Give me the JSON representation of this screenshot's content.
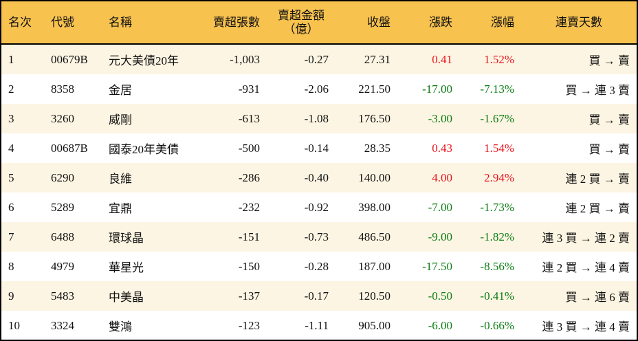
{
  "headers": [
    "名次",
    "代號",
    "名稱",
    "賣超張數",
    "賣超金額",
    "（億）",
    "收盤",
    "漲跌",
    "漲幅",
    "連賣天數"
  ],
  "colors": {
    "header_bg": "#F8C24F",
    "row_alt_bg": "#FDF5E3",
    "up": "#E8131C",
    "down": "#0A7D12"
  },
  "rows": [
    {
      "rank": "1",
      "code": "00679B",
      "name": "元大美債20年",
      "shares": "-1,003",
      "amount": "-0.27",
      "close": "27.31",
      "change": "0.41",
      "pct": "1.52%",
      "dir": "up",
      "streak": "買 → 賣"
    },
    {
      "rank": "2",
      "code": "8358",
      "name": "金居",
      "shares": "-931",
      "amount": "-2.06",
      "close": "221.50",
      "change": "-17.00",
      "pct": "-7.13%",
      "dir": "down",
      "streak": "買 → 連 3 賣"
    },
    {
      "rank": "3",
      "code": "3260",
      "name": "威剛",
      "shares": "-613",
      "amount": "-1.08",
      "close": "176.50",
      "change": "-3.00",
      "pct": "-1.67%",
      "dir": "down",
      "streak": "買 → 賣"
    },
    {
      "rank": "4",
      "code": "00687B",
      "name": "國泰20年美債",
      "shares": "-500",
      "amount": "-0.14",
      "close": "28.35",
      "change": "0.43",
      "pct": "1.54%",
      "dir": "up",
      "streak": "買 → 賣"
    },
    {
      "rank": "5",
      "code": "6290",
      "name": "良維",
      "shares": "-286",
      "amount": "-0.40",
      "close": "140.00",
      "change": "4.00",
      "pct": "2.94%",
      "dir": "up",
      "streak": "連 2 買 → 賣"
    },
    {
      "rank": "6",
      "code": "5289",
      "name": "宜鼎",
      "shares": "-232",
      "amount": "-0.92",
      "close": "398.00",
      "change": "-7.00",
      "pct": "-1.73%",
      "dir": "down",
      "streak": "連 2 買 → 賣"
    },
    {
      "rank": "7",
      "code": "6488",
      "name": "環球晶",
      "shares": "-151",
      "amount": "-0.73",
      "close": "486.50",
      "change": "-9.00",
      "pct": "-1.82%",
      "dir": "down",
      "streak": "連 3 買 → 連 2 賣"
    },
    {
      "rank": "8",
      "code": "4979",
      "name": "華星光",
      "shares": "-150",
      "amount": "-0.28",
      "close": "187.00",
      "change": "-17.50",
      "pct": "-8.56%",
      "dir": "down",
      "streak": "連 2 買 → 連 4 賣"
    },
    {
      "rank": "9",
      "code": "5483",
      "name": "中美晶",
      "shares": "-137",
      "amount": "-0.17",
      "close": "120.50",
      "change": "-0.50",
      "pct": "-0.41%",
      "dir": "down",
      "streak": "買 → 連 6 賣"
    },
    {
      "rank": "10",
      "code": "3324",
      "name": "雙鴻",
      "shares": "-123",
      "amount": "-1.11",
      "close": "905.00",
      "change": "-6.00",
      "pct": "-0.66%",
      "dir": "down",
      "streak": "連 3 買 → 連 4 賣"
    }
  ]
}
